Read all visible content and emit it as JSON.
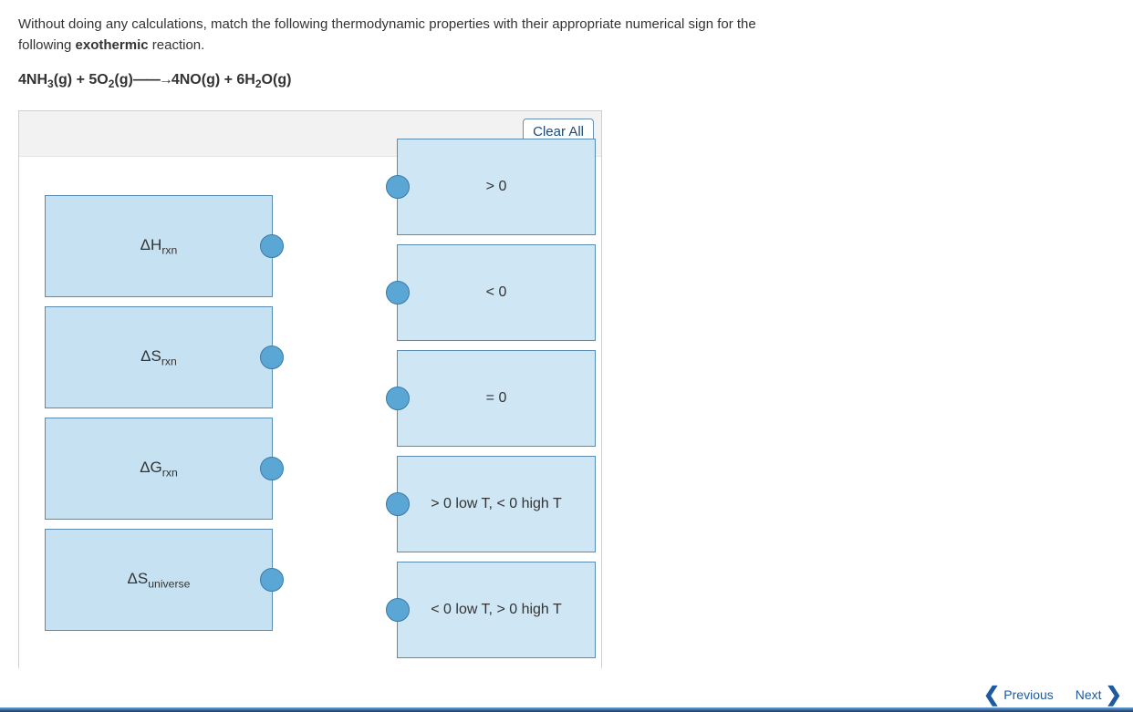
{
  "question": {
    "line1": "Without doing any calculations, match the following thermodynamic properties with their appropriate numerical sign for the",
    "line2_prefix": "following ",
    "line2_bold": "exothermic",
    "line2_suffix": " reaction."
  },
  "equation": {
    "html": "4NH<sub>3</sub>(g) + 5O<sub>2</sub>(g)<span class='arrow'>——→</span>4NO(g) + 6H<sub>2</sub>O(g)"
  },
  "clear_all_label": "Clear All",
  "drag_items": [
    {
      "name": "delta-h-rxn",
      "prefix": "ΔH",
      "sub": "rxn"
    },
    {
      "name": "delta-s-rxn",
      "prefix": "ΔS",
      "sub": "rxn"
    },
    {
      "name": "delta-g-rxn",
      "prefix": "ΔG",
      "sub": "rxn"
    },
    {
      "name": "delta-s-universe",
      "prefix": "ΔS",
      "sub": "universe"
    }
  ],
  "drop_targets": [
    {
      "name": "gt-zero",
      "label": "> 0"
    },
    {
      "name": "lt-zero",
      "label": "< 0"
    },
    {
      "name": "eq-zero",
      "label": "= 0"
    },
    {
      "name": "gt-lowT-lt-highT",
      "label": "> 0 low T, < 0 high T"
    },
    {
      "name": "lt-lowT-gt-highT",
      "label": "< 0 low T, > 0 high T"
    }
  ],
  "nav": {
    "previous": "Previous",
    "next": "Next"
  },
  "colors": {
    "tile_bg": "#c6e2f2",
    "tile_border": "#5a8bb0",
    "knob": "#5aa7d6",
    "link": "#1e5a9e"
  }
}
